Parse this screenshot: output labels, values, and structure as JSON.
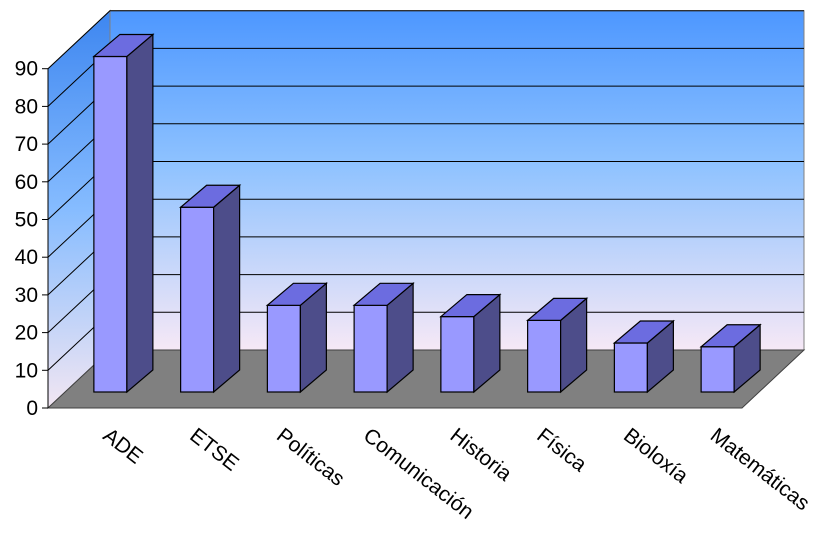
{
  "chart_data": {
    "type": "bar",
    "categories": [
      "ADE",
      "ETSE",
      "Políticas",
      "Comunicación",
      "Historia",
      "Física",
      "Bioloxía",
      "Matemáticas"
    ],
    "values": [
      89,
      49,
      23,
      23,
      20,
      19,
      13,
      12
    ],
    "yticks": [
      "0",
      "10",
      "20",
      "30",
      "40",
      "50",
      "60",
      "70",
      "80",
      "90"
    ],
    "ylim": [
      0,
      90
    ],
    "grid": true,
    "legend": "none",
    "colors": {
      "bar_front": "#9999ff",
      "bar_top": "#6c6ce0",
      "bar_side": "#4d4d8a",
      "floor": "#808080",
      "wall_top": "#5aa0ff",
      "wall_bottom": "#f4e8f4",
      "gridline": "#000000"
    }
  }
}
